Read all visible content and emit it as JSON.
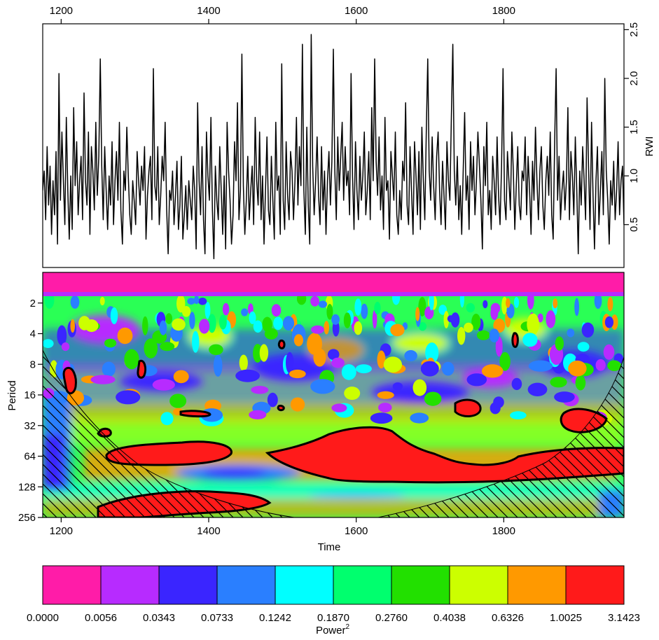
{
  "chart_data": [
    {
      "type": "line",
      "panel": "series",
      "xlabel": "",
      "ylabel": "RWI",
      "x_ticks": [
        "1200",
        "1400",
        "1600",
        "1800"
      ],
      "y_ticks": [
        "0.5",
        "1.0",
        "1.5",
        "2.0",
        "2.5"
      ],
      "xlim": [
        1175,
        1963
      ],
      "ylim": [
        0.06,
        2.56
      ],
      "x_axis_position": "top",
      "y_axis_position": "right",
      "series": [
        {
          "x_start": 1175,
          "x_step": 2,
          "values": [
            0.85,
            1.05,
            0.55,
            1.3,
            0.7,
            1.1,
            0.4,
            0.95,
            0.6,
            1.25,
            0.3,
            2.05,
            0.75,
            1.45,
            0.95,
            0.5,
            1.6,
            0.85,
            0.35,
            1.0,
            0.45,
            1.7,
            0.9,
            1.35,
            0.6,
            0.95,
            1.2,
            0.55,
            1.85,
            0.95,
            0.7,
            1.45,
            0.4,
            1.3,
            1.05,
            0.65,
            1.55,
            0.8,
            1.2,
            2.2,
            1.1,
            0.55,
            1.3,
            0.85,
            0.45,
            1.0,
            0.7,
            1.35,
            0.5,
            0.95,
            1.25,
            0.75,
            1.55,
            0.65,
            0.3,
            1.05,
            0.85,
            1.5,
            1.0,
            0.6,
            0.4,
            0.95,
            0.75,
            0.5,
            1.25,
            0.95,
            0.7,
            1.1,
            0.85,
            1.3,
            0.35,
            0.8,
            1.05,
            1.2,
            0.55,
            2.1,
            0.9,
            0.75,
            1.3,
            0.5,
            0.8,
            1.2,
            0.95,
            1.55,
            0.65,
            0.2,
            0.85,
            0.75,
            1.05,
            0.5,
            0.8,
            1.15,
            0.45,
            0.7,
            1.2,
            0.35,
            0.6,
            0.9,
            0.45,
            0.95,
            0.75,
            0.55,
            1.1,
            0.85,
            0.25,
            1.75,
            0.95,
            0.6,
            1.3,
            0.55,
            0.2,
            1.45,
            1.0,
            0.75,
            1.6,
            0.65,
            0.15,
            1.1,
            0.75,
            0.55,
            1.3,
            0.85,
            0.4,
            1.0,
            0.25,
            1.55,
            1.05,
            0.75,
            0.3,
            0.6,
            1.35,
            0.95,
            1.75,
            0.55,
            0.85,
            2.25,
            0.9,
            0.4,
            0.75,
            1.2,
            0.55,
            0.85,
            1.1,
            0.5,
            1.6,
            0.95,
            0.7,
            1.45,
            0.55,
            1.0,
            0.3,
            0.85,
            1.4,
            0.65,
            0.5,
            1.2,
            0.75,
            0.35,
            1.55,
            0.85,
            1.0,
            0.4,
            2.15,
            0.75,
            0.45,
            1.35,
            0.8,
            0.55,
            1.25,
            1.05,
            0.55,
            0.95,
            1.6,
            0.7,
            1.3,
            0.9,
            2.35,
            0.85,
            0.4,
            1.5,
            0.7,
            0.3,
            2.45,
            1.1,
            0.6,
            0.95,
            1.4,
            0.8,
            0.5,
            1.3,
            0.65,
            1.05,
            0.4,
            0.95,
            1.25,
            0.7,
            1.15,
            2.3,
            1.05,
            0.55,
            1.4,
            0.85,
            1.2,
            1.55,
            0.75,
            1.3,
            0.9,
            1.05,
            0.6,
            2.05,
            1.0,
            0.45,
            1.35,
            0.85,
            0.55,
            1.2,
            0.75,
            1.0,
            1.45,
            0.6,
            0.85,
            1.25,
            0.55,
            1.7,
            0.95,
            2.2,
            1.15,
            0.8,
            1.4,
            0.65,
            1.0,
            0.45,
            1.6,
            0.85,
            0.95,
            0.35,
            1.25,
            1.0,
            0.75,
            1.45,
            0.6,
            0.4,
            0.85,
            0.55,
            1.15,
            0.95,
            1.75,
            0.7,
            0.5,
            1.3,
            0.85,
            0.4,
            1.35,
            1.0,
            0.6,
            1.25,
            0.45,
            1.5,
            0.95,
            0.55,
            1.45,
            2.2,
            1.05,
            0.75,
            1.4,
            0.9,
            0.55,
            1.2,
            1.45,
            0.85,
            0.5,
            1.15,
            0.8,
            0.45,
            1.35,
            0.95,
            0.75,
            1.6,
            2.35,
            1.05,
            0.7,
            1.2,
            0.55,
            0.9,
            0.4,
            1.05,
            1.65,
            0.75,
            1.0,
            0.45,
            1.35,
            0.85,
            1.2,
            0.6,
            0.95,
            1.45,
            1.1,
            0.75,
            0.25,
            1.3,
            0.9,
            1.55,
            0.6,
            0.85,
            0.45,
            1.2,
            0.95,
            0.6,
            1.4,
            0.8,
            0.5,
            1.1,
            2.1,
            0.75,
            0.55,
            1.25,
            0.95,
            0.65,
            1.45,
            1.05,
            0.45,
            0.9,
            1.3,
            0.7,
            0.55,
            1.05,
            0.95,
            1.4,
            0.6,
            1.2,
            0.85,
            0.4,
            1.15,
            0.75,
            1.5,
            0.95,
            0.55,
            1.05,
            1.3,
            0.7,
            0.45,
            0.95,
            1.2,
            0.8,
            1.45,
            0.6,
            0.35,
            1.35,
            2.1,
            0.75,
            1.2,
            0.55,
            0.85,
            1.05,
            0.65,
            0.95,
            1.7,
            0.55,
            1.25,
            1.0,
            0.6,
            1.4,
            0.85,
            0.2,
            1.05,
            0.7,
            1.3,
            0.95,
            0.55,
            1.8,
            1.1,
            0.45,
            1.55,
            0.8,
            0.25,
            0.95,
            1.3,
            0.5,
            0.85,
            1.25,
            0.6,
            2.0,
            1.05,
            0.75,
            0.3,
            0.95,
            0.7,
            1.15,
            0.55,
            0.85,
            1.35,
            0.6,
            0.95,
            1.1,
            0.5,
            1.25
          ]
        }
      ]
    },
    {
      "type": "heatmap",
      "panel": "wavelet power spectrum",
      "xlabel": "Time",
      "ylabel": "Period",
      "x_ticks": [
        "1200",
        "1400",
        "1600",
        "1800"
      ],
      "y_ticks": [
        "2",
        "4",
        "8",
        "16",
        "32",
        "64",
        "128",
        "256"
      ],
      "xlim": [
        1175,
        1963
      ],
      "ylim_period": [
        1,
        256
      ],
      "y_scale": "log2",
      "y_reversed": true,
      "cone_of_influence": "hatched",
      "significance_contours": "black outlines"
    },
    {
      "type": "legend",
      "panel": "colorbar",
      "label_main": "Power",
      "label_superscript": "2",
      "tick_labels": [
        "0.0000",
        "0.0056",
        "0.0343",
        "0.0733",
        "0.1242",
        "0.1870",
        "0.2760",
        "0.4038",
        "0.6326",
        "1.0025",
        "3.1423"
      ],
      "colors": [
        "#ff1ca8",
        "#b72bff",
        "#3a25ff",
        "#2a7fff",
        "#00ffff",
        "#00ff6e",
        "#22e000",
        "#ccff00",
        "#ff9900",
        "#ff1a1a"
      ]
    }
  ]
}
